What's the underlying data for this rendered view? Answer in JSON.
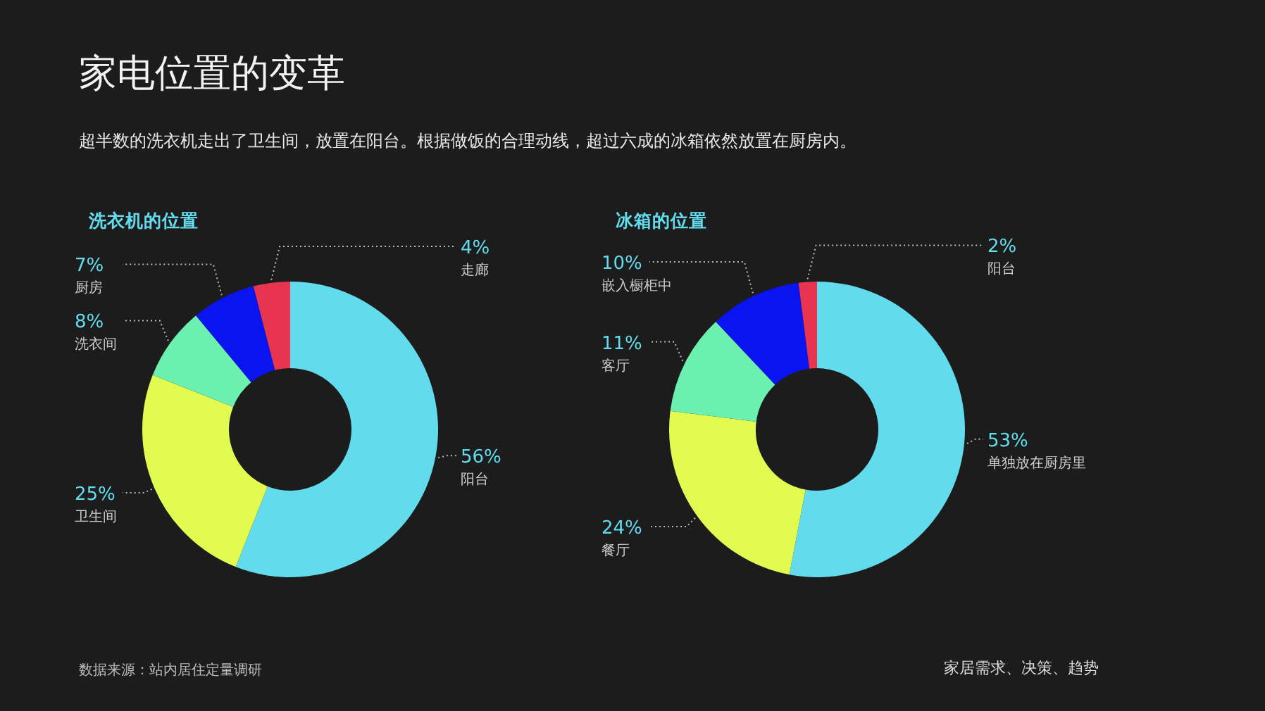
{
  "chart_data": [
    {
      "type": "other",
      "title": "家电位置的变革",
      "subtitle": "超半数的洗衣机走出了卫生间，放置在阳台。根据做饭的合理动线，超过六成的冰箱依然放置在厨房内。",
      "annotations": [
        "数据来源：站内居住定量调研",
        "家居需求、决策、趋势"
      ]
    },
    {
      "type": "donut",
      "title": "洗衣机的位置",
      "categories": [
        "阳台",
        "卫生间",
        "洗衣间",
        "厨房",
        "走廊"
      ],
      "values": [
        56,
        25,
        8,
        7,
        4
      ],
      "value_labels": [
        "56%",
        "25%",
        "8%",
        "7%",
        "4%"
      ],
      "colors": [
        "#62dcec",
        "#e2fb50",
        "#6cf0b0",
        "#0a14f0",
        "#e8354f"
      ]
    },
    {
      "type": "donut",
      "title": "冰箱的位置",
      "categories": [
        "单独放在厨房里",
        "餐厅",
        "客厅",
        "嵌入橱柜中",
        "阳台"
      ],
      "values": [
        53,
        24,
        11,
        10,
        2
      ],
      "value_labels": [
        "53%",
        "24%",
        "11%",
        "10%",
        "2%"
      ],
      "colors": [
        "#62dcec",
        "#e2fb50",
        "#6cf0b0",
        "#0a14f0",
        "#e8354f"
      ]
    }
  ]
}
